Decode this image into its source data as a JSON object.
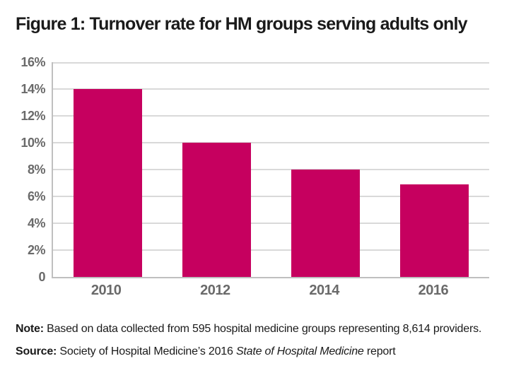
{
  "chart_data": {
    "type": "bar",
    "title": "Figure 1: Turnover rate for HM groups serving adults only",
    "categories": [
      "2010",
      "2012",
      "2014",
      "2016"
    ],
    "values": [
      14,
      10,
      8,
      6.9
    ],
    "unit": "%",
    "xlabel": "",
    "ylabel": "",
    "ylim": [
      0,
      16
    ],
    "y_ticks": [
      {
        "label": "16%",
        "value": 16
      },
      {
        "label": "14%",
        "value": 14
      },
      {
        "label": "12%",
        "value": 12
      },
      {
        "label": "10%",
        "value": 10
      },
      {
        "label": "8%",
        "value": 8
      },
      {
        "label": "6%",
        "value": 6
      },
      {
        "label": "4%",
        "value": 4
      },
      {
        "label": "2%",
        "value": 2
      },
      {
        "label": "0",
        "value": 0
      }
    ],
    "grid": "horizontal",
    "legend": "none",
    "colors": {
      "bar": "#c6005f",
      "gridline": "#d9d9d9",
      "axis": "#bfbfbf",
      "tick_label": "#6a6a6a",
      "title": "#1a1a1a"
    }
  },
  "footnotes": {
    "note_label": "Note:",
    "note_text": " Based on data collected from 595 hospital medicine groups representing 8,614 providers.",
    "source_label": "Source:",
    "source_prefix": " Society of Hospital Medicine’s 2016 ",
    "source_italic": "State of Hospital Medicine",
    "source_suffix": " report"
  }
}
